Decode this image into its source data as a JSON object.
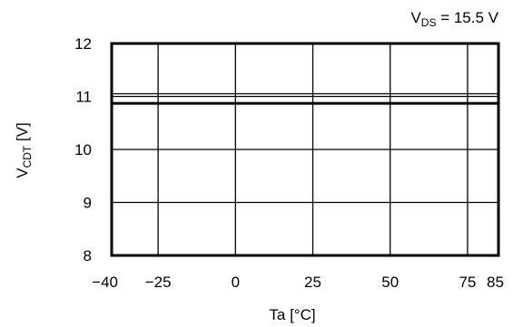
{
  "chart_data": {
    "type": "line",
    "annotation": {
      "base": "V",
      "sub": "DS",
      "rest": " = 15.5 V"
    },
    "xlabel": "Ta [°C]",
    "ylabel": {
      "base": "V",
      "sub": "CDT",
      "rest": " [V]"
    },
    "xlim": [
      -40,
      85
    ],
    "ylim": [
      8,
      12
    ],
    "xticks": [
      -40,
      -25,
      0,
      25,
      50,
      75,
      85
    ],
    "xtick_labels": [
      "−40",
      "−25",
      "0",
      "25",
      "50",
      "75",
      "85"
    ],
    "yticks": [
      8,
      9,
      10,
      11,
      12
    ],
    "ytick_labels": [
      "8",
      "9",
      "10",
      "11",
      "12"
    ],
    "grid": true,
    "series": [
      {
        "x": [
          -40,
          85
        ],
        "y": [
          10.87,
          10.87
        ]
      }
    ]
  }
}
